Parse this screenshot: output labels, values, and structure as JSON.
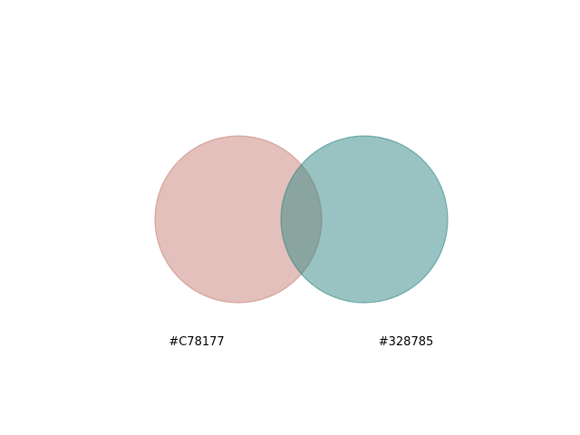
{
  "diagram": {
    "type": "venn",
    "sets": [
      {
        "label": "#C78177",
        "color": "#C78177"
      },
      {
        "label": "#328785",
        "color": "#328785"
      }
    ]
  }
}
